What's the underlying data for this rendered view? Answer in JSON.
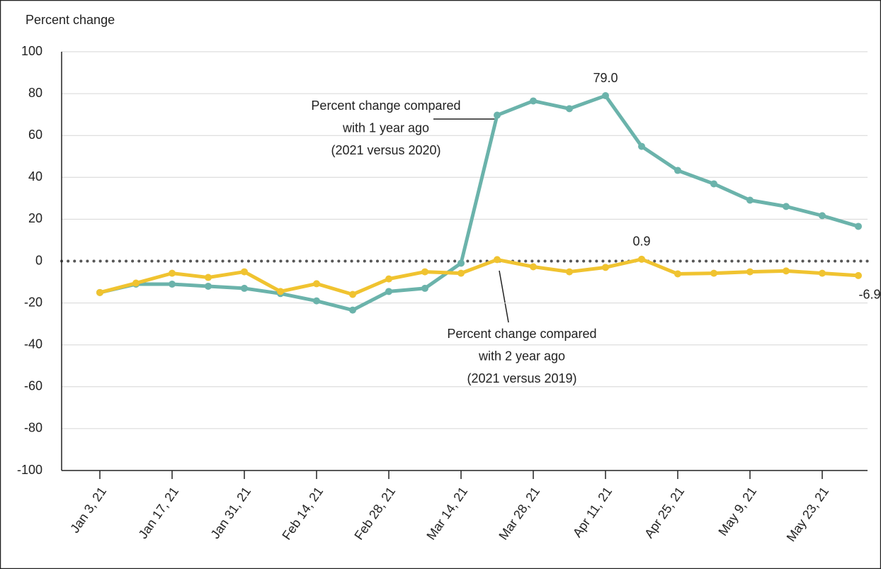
{
  "chart_data": {
    "type": "line",
    "y_label": "Percent change",
    "categories": [
      "Jan 3, 21",
      null,
      "Jan 17, 21",
      null,
      "Jan 31, 21",
      null,
      "Feb 14, 21",
      null,
      "Feb 28, 21",
      null,
      "Mar 14, 21",
      null,
      "Mar 28, 21",
      null,
      "Apr 11, 21",
      null,
      "Apr 25, 21",
      null,
      "May 9, 21",
      null,
      "May 23, 21",
      null
    ],
    "series": [
      {
        "name": "Percent change compared\nwith 1 year ago\n(2021 versus 2020)",
        "color": "#6bb3ab",
        "values": [
          -15,
          -11,
          -11,
          -12,
          -13,
          -15.5,
          -19,
          -23.4,
          -14.5,
          -13,
          -1,
          69.7,
          76.5,
          72.8,
          79.0,
          54.8,
          43.3,
          36.9,
          29.1,
          26.1,
          21.7,
          16.6
        ],
        "value_labels": [
          null,
          null,
          null,
          null,
          null,
          null,
          null,
          null,
          null,
          null,
          null,
          null,
          null,
          null,
          "79.0",
          null,
          null,
          null,
          null,
          null,
          null,
          null
        ]
      },
      {
        "name": "Percent change compared\nwith 2 year ago\n(2021 versus 2019)",
        "color": "#f0c330",
        "values": [
          -15,
          -10.5,
          -5.8,
          -7.8,
          -5.1,
          -14.5,
          -10.8,
          -15.9,
          -8.5,
          -5.1,
          -5.8,
          0.7,
          -2.7,
          -5.1,
          -3,
          0.9,
          -6.1,
          -5.8,
          -5.1,
          -4.7,
          -5.8,
          -6.9
        ],
        "value_labels": [
          null,
          null,
          null,
          null,
          null,
          null,
          null,
          null,
          null,
          null,
          null,
          null,
          null,
          null,
          null,
          "0.9",
          null,
          null,
          null,
          null,
          null,
          "-6.9"
        ]
      }
    ],
    "ylim": [
      -100,
      100
    ],
    "yticks": [
      -100,
      -80,
      -60,
      -40,
      -20,
      0,
      20,
      40,
      60,
      80,
      100
    ],
    "grid": true
  }
}
